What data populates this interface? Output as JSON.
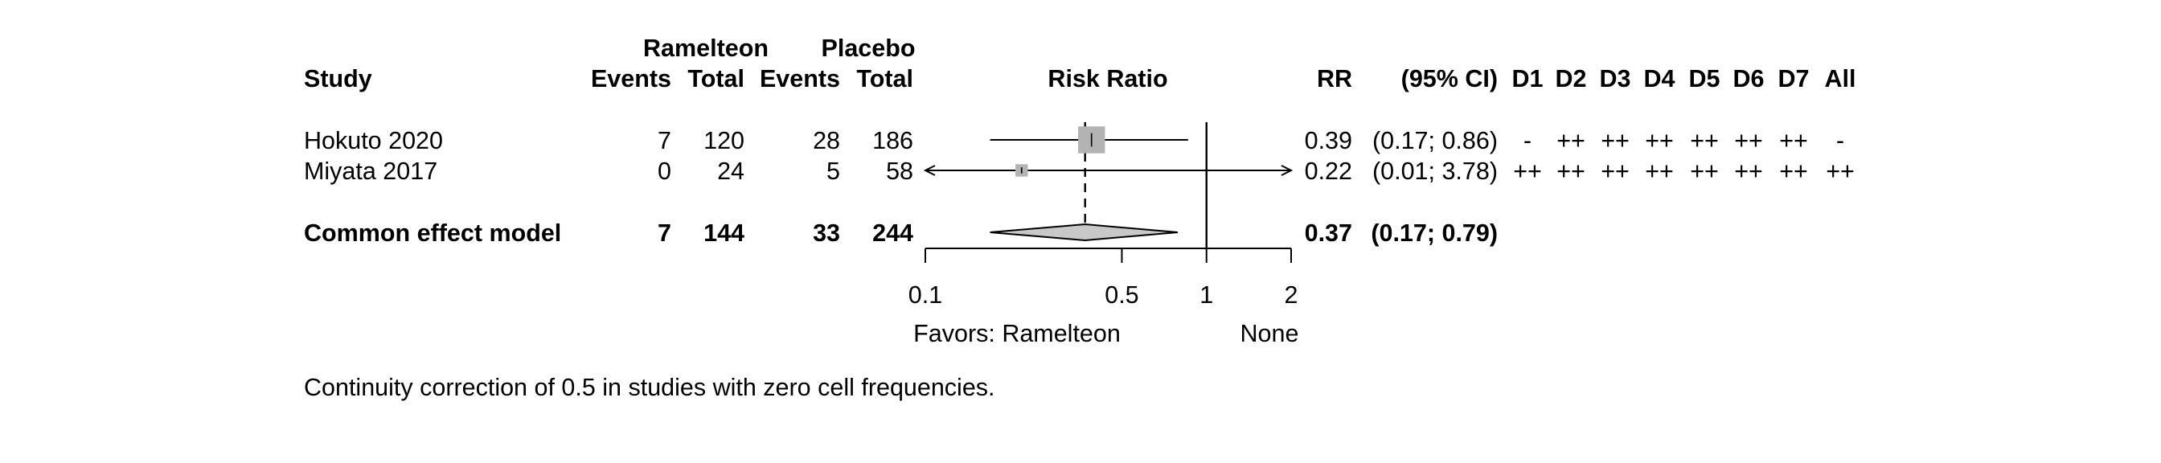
{
  "headers": {
    "study": "Study",
    "group1": "Ramelteon",
    "group2": "Placebo",
    "events": "Events",
    "total": "Total",
    "effect": "Risk Ratio",
    "rr": "RR",
    "ci": "(95% CI)",
    "domains": [
      "D1",
      "D2",
      "D3",
      "D4",
      "D5",
      "D6",
      "D7",
      "All"
    ]
  },
  "chart_data": {
    "type": "forest",
    "measure": "Risk Ratio",
    "scale": "log",
    "xlim": [
      0.1,
      2
    ],
    "xticks": [
      0.1,
      0.5,
      1,
      2
    ],
    "xtick_labels": [
      "0.1",
      "0.5",
      "1",
      "2"
    ],
    "null_value": 1,
    "studies": [
      {
        "name": "Hokuto 2020",
        "e1": "7",
        "n1": "120",
        "e2": "28",
        "n2": "186",
        "rr": 0.39,
        "lower": 0.17,
        "upper": 0.86,
        "rr_text": "0.39",
        "ci_text": "(0.17; 0.86)",
        "weight": 0.95,
        "arrow_left": false,
        "arrow_right": false,
        "rob": [
          "-",
          "++",
          "++",
          "++",
          "++",
          "++",
          "++",
          "-"
        ]
      },
      {
        "name": "Miyata 2017",
        "e1": "0",
        "n1": "24",
        "e2": "5",
        "n2": "58",
        "rr": 0.22,
        "lower": 0.01,
        "upper": 3.78,
        "rr_text": "0.22",
        "ci_text": "(0.01; 3.78)",
        "weight": 0.05,
        "arrow_left": true,
        "arrow_right": true,
        "rob": [
          "++",
          "++",
          "++",
          "++",
          "++",
          "++",
          "++",
          "++"
        ]
      }
    ],
    "pooled": {
      "name": "Common effect model",
      "e1": "7",
      "n1": "144",
      "e2": "33",
      "n2": "244",
      "rr": 0.37,
      "lower": 0.17,
      "upper": 0.79,
      "rr_text": "0.37",
      "ci_text": "(0.17; 0.79)"
    },
    "label_left": "Favors: Ramelteon",
    "label_right": "None"
  },
  "footnote": "Continuity correction of 0.5 in studies with zero cell frequencies.",
  "colors": {
    "square": "#b3b3b3",
    "diamond": "#c8c8c8",
    "line": "#000000"
  }
}
